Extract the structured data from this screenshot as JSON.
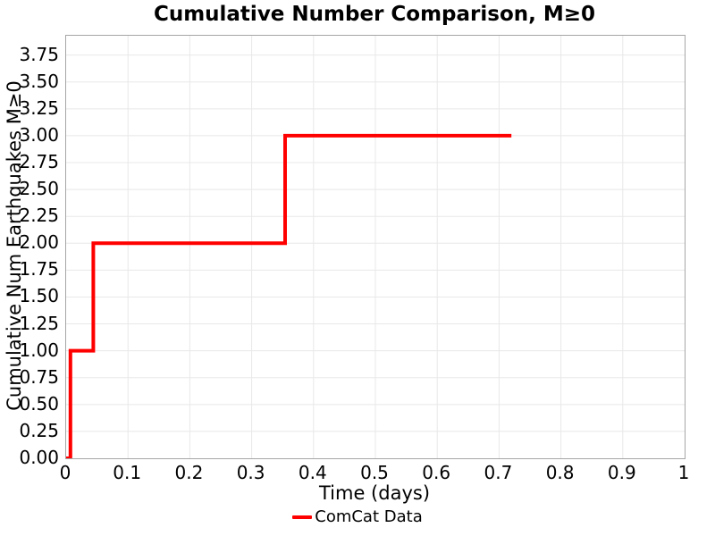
{
  "figure": {
    "title": "Cumulative Number Comparison, M≥0",
    "xlabel": "Time (days)",
    "ylabel": "Cumulative Num Earthquakes M≥0"
  },
  "legend": {
    "entries": [
      {
        "label": "ComCat Data",
        "color": "#ff0000"
      }
    ]
  },
  "colors": {
    "line": "#ff0000",
    "grid": "#e8e8e8",
    "spine": "#a6a6a6",
    "text": "#000000",
    "background": "#ffffff"
  },
  "chart_data": {
    "type": "line",
    "subtype": "step-post",
    "title": "Cumulative Number Comparison, M≥0",
    "xlabel": "Time (days)",
    "ylabel": "Cumulative Num Earthquakes M≥0",
    "xlim": [
      0,
      1
    ],
    "ylim": [
      0,
      3.93
    ],
    "xticks": [
      0,
      0.1,
      0.2,
      0.3,
      0.4,
      0.5,
      0.6,
      0.7,
      0.8,
      0.9,
      1
    ],
    "xtick_labels": [
      "0",
      "0.1",
      "0.2",
      "0.3",
      "0.4",
      "0.5",
      "0.6",
      "0.7",
      "0.8",
      "0.9",
      "1"
    ],
    "yticks": [
      0.0,
      0.25,
      0.5,
      0.75,
      1.0,
      1.25,
      1.5,
      1.75,
      2.0,
      2.25,
      2.5,
      2.75,
      3.0,
      3.25,
      3.5,
      3.75
    ],
    "ytick_labels": [
      "0.00",
      "0.25",
      "0.50",
      "0.75",
      "1.00",
      "1.25",
      "1.50",
      "1.75",
      "2.00",
      "2.25",
      "2.50",
      "2.75",
      "3.00",
      "3.25",
      "3.50",
      "3.75"
    ],
    "grid": true,
    "legend_position": "bottom-center",
    "series": [
      {
        "name": "ComCat Data",
        "color": "#ff0000",
        "line_width": 4,
        "event_times_days": [
          0.007,
          0.044,
          0.354
        ],
        "end_time_days": 0.72,
        "max_cumulative": 3,
        "points": [
          [
            0,
            0
          ],
          [
            0.007,
            0
          ],
          [
            0.007,
            1
          ],
          [
            0.044,
            1
          ],
          [
            0.044,
            2
          ],
          [
            0.354,
            2
          ],
          [
            0.354,
            3
          ],
          [
            0.72,
            3
          ]
        ]
      }
    ]
  }
}
